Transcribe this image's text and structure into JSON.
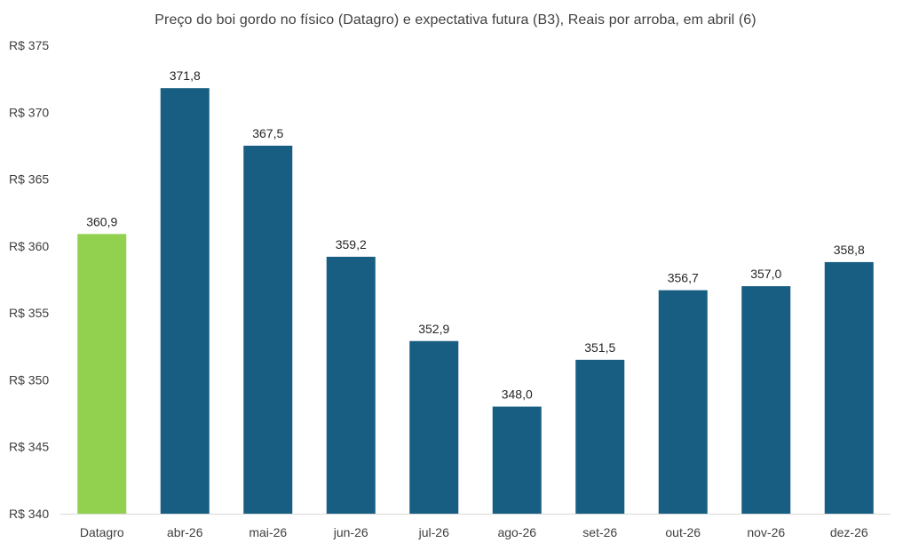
{
  "chart_data": {
    "type": "bar",
    "title": "Preço do boi gordo no físico (Datagro)  e expectativa futura (B3), Reais por arroba, em abril (6)",
    "xlabel": "",
    "ylabel": "",
    "categories": [
      "Datagro",
      "abr-26",
      "mai-26",
      "jun-26",
      "jul-26",
      "ago-26",
      "set-26",
      "out-26",
      "nov-26",
      "dez-26"
    ],
    "values": [
      360.9,
      371.8,
      367.5,
      359.2,
      352.9,
      348.0,
      351.5,
      356.7,
      357.0,
      358.8
    ],
    "value_labels": [
      "360,9",
      "371,8",
      "367,5",
      "359,2",
      "352,9",
      "348,0",
      "351,5",
      "356,7",
      "357,0",
      "358,8"
    ],
    "ylim": [
      340,
      375
    ],
    "yticks": [
      340,
      345,
      350,
      355,
      360,
      365,
      370,
      375
    ],
    "ytick_labels": [
      "R$ 340",
      "R$ 345",
      "R$ 350",
      "R$ 355",
      "R$ 360",
      "R$ 365",
      "R$ 370",
      "R$ 375"
    ],
    "grid": false,
    "legend": "none",
    "colors": {
      "highlight": "#92D050",
      "bars": "#175E82",
      "axis": "#D9D9D9",
      "text": "#404040"
    },
    "highlight_index": 0
  }
}
